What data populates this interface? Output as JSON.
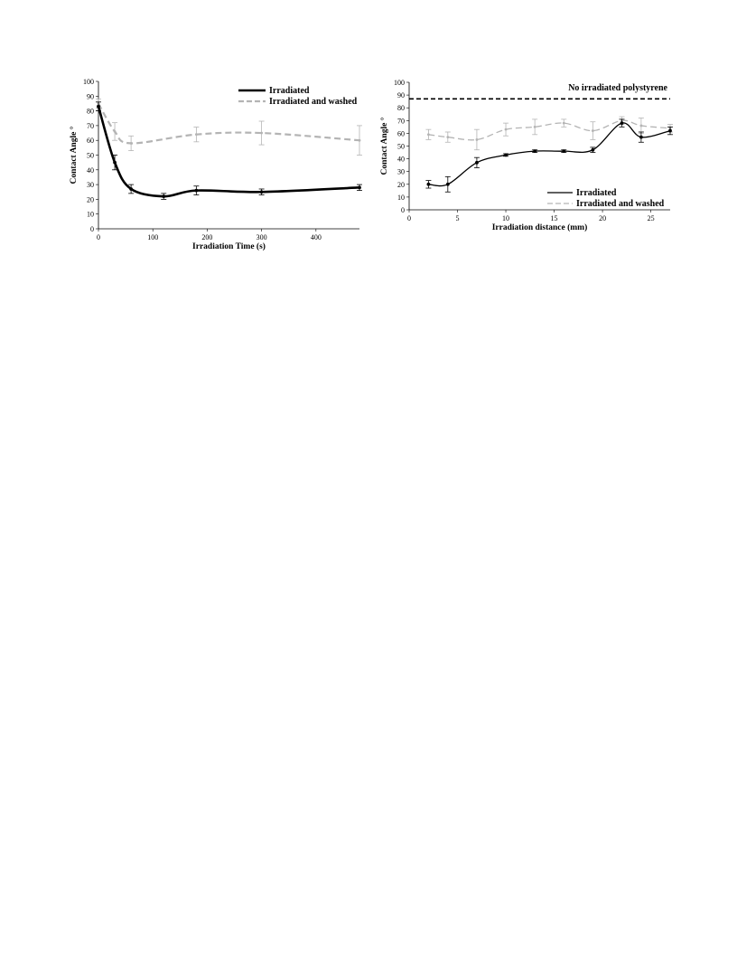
{
  "chart_data": [
    {
      "type": "line",
      "xlabel": "Irradiation Time (s)",
      "ylabel": "Contact Angle °",
      "xlim": [
        0,
        480
      ],
      "ylim": [
        0,
        100
      ],
      "xticks": [
        0,
        100,
        200,
        300,
        400
      ],
      "yticks": [
        0,
        10,
        20,
        30,
        40,
        50,
        60,
        70,
        80,
        90,
        100
      ],
      "grid": false,
      "legend_position": "top-right",
      "series": [
        {
          "name": "Irradiated",
          "color": "#000000",
          "style": "solid",
          "x": [
            0,
            30,
            60,
            120,
            180,
            300,
            480
          ],
          "y": [
            83,
            45,
            27,
            22,
            26,
            25,
            28
          ],
          "err": [
            3,
            5,
            3,
            2,
            3,
            2,
            2
          ]
        },
        {
          "name": "Irradiated and washed",
          "color": "#b4b4b4",
          "style": "dashed",
          "x": [
            0,
            30,
            60,
            180,
            300,
            480
          ],
          "y": [
            85,
            66,
            58,
            64,
            65,
            60
          ],
          "err": [
            3,
            6,
            5,
            5,
            8,
            10
          ]
        }
      ]
    },
    {
      "type": "line",
      "xlabel": "Irradiation distance (mm)",
      "ylabel": "Contact Angle °",
      "xlim": [
        0,
        27
      ],
      "ylim": [
        0,
        100
      ],
      "xticks": [
        0,
        5,
        10,
        15,
        20,
        25
      ],
      "yticks": [
        0,
        10,
        20,
        30,
        40,
        50,
        60,
        70,
        80,
        90,
        100
      ],
      "grid": false,
      "legend_position": "bottom-right",
      "annotation": "No irradiated polystyrene",
      "reference_line": {
        "y": 87,
        "color": "#000000",
        "style": "dashed"
      },
      "series": [
        {
          "name": "Irradiated",
          "color": "#000000",
          "style": "solid",
          "x": [
            2,
            4,
            7,
            10,
            13,
            16,
            19,
            22,
            24,
            27
          ],
          "y": [
            20,
            20,
            37,
            43,
            46,
            46,
            47,
            68,
            57,
            62
          ],
          "err": [
            3,
            6,
            4,
            1,
            1,
            1,
            2,
            3,
            4,
            3
          ]
        },
        {
          "name": "Irradiated and washed",
          "color": "#b4b4b4",
          "style": "dashed",
          "x": [
            2,
            4,
            7,
            10,
            13,
            16,
            19,
            22,
            24,
            27
          ],
          "y": [
            59,
            57,
            55,
            63,
            65,
            68,
            62,
            70,
            66,
            64
          ],
          "err": [
            4,
            4,
            8,
            5,
            6,
            3,
            7,
            3,
            6,
            3
          ]
        }
      ]
    }
  ]
}
